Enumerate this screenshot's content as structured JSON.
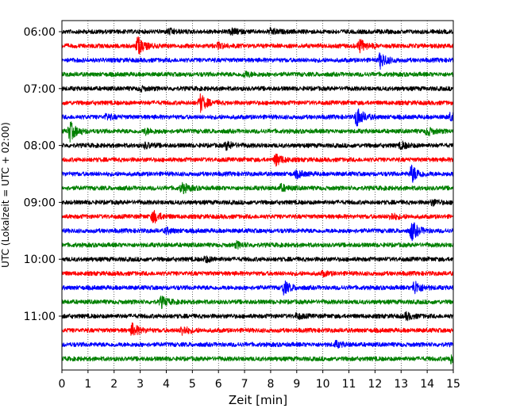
{
  "chart_data": {
    "type": "line",
    "subtype": "helicorder",
    "xlabel": "Zeit  [min]",
    "ylabel": "UTC (Lokalzeit = UTC + 02:00)",
    "xlim": [
      0,
      15
    ],
    "x_ticks": [
      "0",
      "1",
      "2",
      "3",
      "4",
      "5",
      "6",
      "7",
      "8",
      "9",
      "10",
      "11",
      "12",
      "13",
      "14",
      "15"
    ],
    "y_tick_labels": [
      "06:00",
      "07:00",
      "08:00",
      "09:00",
      "10:00",
      "11:00"
    ],
    "trace_interval_min": 15,
    "start_time": "06:00",
    "grid": "vertical dotted at each minute",
    "colors": [
      "#000000",
      "#ff0000",
      "#0000ff",
      "#008000"
    ],
    "traces": [
      {
        "start": "06:00",
        "color": "#000000",
        "events": [
          [
            4.1,
            0.4
          ],
          [
            6.5,
            0.4
          ],
          [
            8.0,
            0.4
          ]
        ]
      },
      {
        "start": "06:15",
        "color": "#ff0000",
        "events": [
          [
            2.9,
            1.4
          ],
          [
            11.4,
            1.0
          ],
          [
            6.0,
            0.4
          ]
        ]
      },
      {
        "start": "06:30",
        "color": "#0000ff",
        "events": [
          [
            12.2,
            1.2
          ]
        ]
      },
      {
        "start": "06:45",
        "color": "#008000",
        "events": [
          [
            7.0,
            0.4
          ]
        ]
      },
      {
        "start": "07:00",
        "color": "#000000",
        "events": [
          [
            3.0,
            0.3
          ]
        ]
      },
      {
        "start": "07:15",
        "color": "#ff0000",
        "events": [
          [
            5.3,
            1.3
          ]
        ]
      },
      {
        "start": "07:30",
        "color": "#0000ff",
        "events": [
          [
            11.3,
            1.5
          ],
          [
            14.9,
            0.6
          ],
          [
            1.7,
            0.4
          ]
        ]
      },
      {
        "start": "07:45",
        "color": "#008000",
        "events": [
          [
            0.3,
            1.5
          ],
          [
            14.0,
            0.6
          ],
          [
            3.2,
            0.4
          ]
        ]
      },
      {
        "start": "08:00",
        "color": "#000000",
        "events": [
          [
            6.3,
            0.6
          ],
          [
            3.2,
            0.4
          ],
          [
            13.0,
            0.5
          ]
        ]
      },
      {
        "start": "08:15",
        "color": "#ff0000",
        "events": [
          [
            8.2,
            0.9
          ]
        ]
      },
      {
        "start": "08:30",
        "color": "#0000ff",
        "events": [
          [
            13.4,
            1.4
          ],
          [
            9.0,
            0.5
          ]
        ]
      },
      {
        "start": "08:45",
        "color": "#008000",
        "events": [
          [
            4.6,
            0.8
          ],
          [
            8.4,
            0.5
          ]
        ]
      },
      {
        "start": "09:00",
        "color": "#000000",
        "events": [
          [
            14.2,
            0.4
          ]
        ]
      },
      {
        "start": "09:15",
        "color": "#ff0000",
        "events": [
          [
            3.5,
            1.0
          ],
          [
            12.6,
            0.5
          ]
        ]
      },
      {
        "start": "09:30",
        "color": "#0000ff",
        "events": [
          [
            13.4,
            1.5
          ],
          [
            4.0,
            0.4
          ]
        ]
      },
      {
        "start": "09:45",
        "color": "#008000",
        "events": [
          [
            6.7,
            0.4
          ]
        ]
      },
      {
        "start": "10:00",
        "color": "#000000",
        "events": [
          [
            5.5,
            0.4
          ]
        ]
      },
      {
        "start": "10:15",
        "color": "#ff0000",
        "events": [
          [
            10.0,
            0.3
          ]
        ]
      },
      {
        "start": "10:30",
        "color": "#0000ff",
        "events": [
          [
            8.5,
            1.0
          ],
          [
            13.5,
            1.1
          ]
        ]
      },
      {
        "start": "10:45",
        "color": "#008000",
        "events": [
          [
            3.8,
            0.8
          ]
        ]
      },
      {
        "start": "11:00",
        "color": "#000000",
        "events": [
          [
            9.0,
            0.4
          ],
          [
            13.2,
            0.5
          ]
        ]
      },
      {
        "start": "11:15",
        "color": "#ff0000",
        "events": [
          [
            2.7,
            1.0
          ],
          [
            4.6,
            0.7
          ]
        ]
      },
      {
        "start": "11:30",
        "color": "#0000ff",
        "events": [
          [
            10.5,
            0.4
          ]
        ]
      },
      {
        "start": "11:45",
        "color": "#008000",
        "events": [
          [
            14.9,
            0.6
          ]
        ]
      }
    ]
  }
}
